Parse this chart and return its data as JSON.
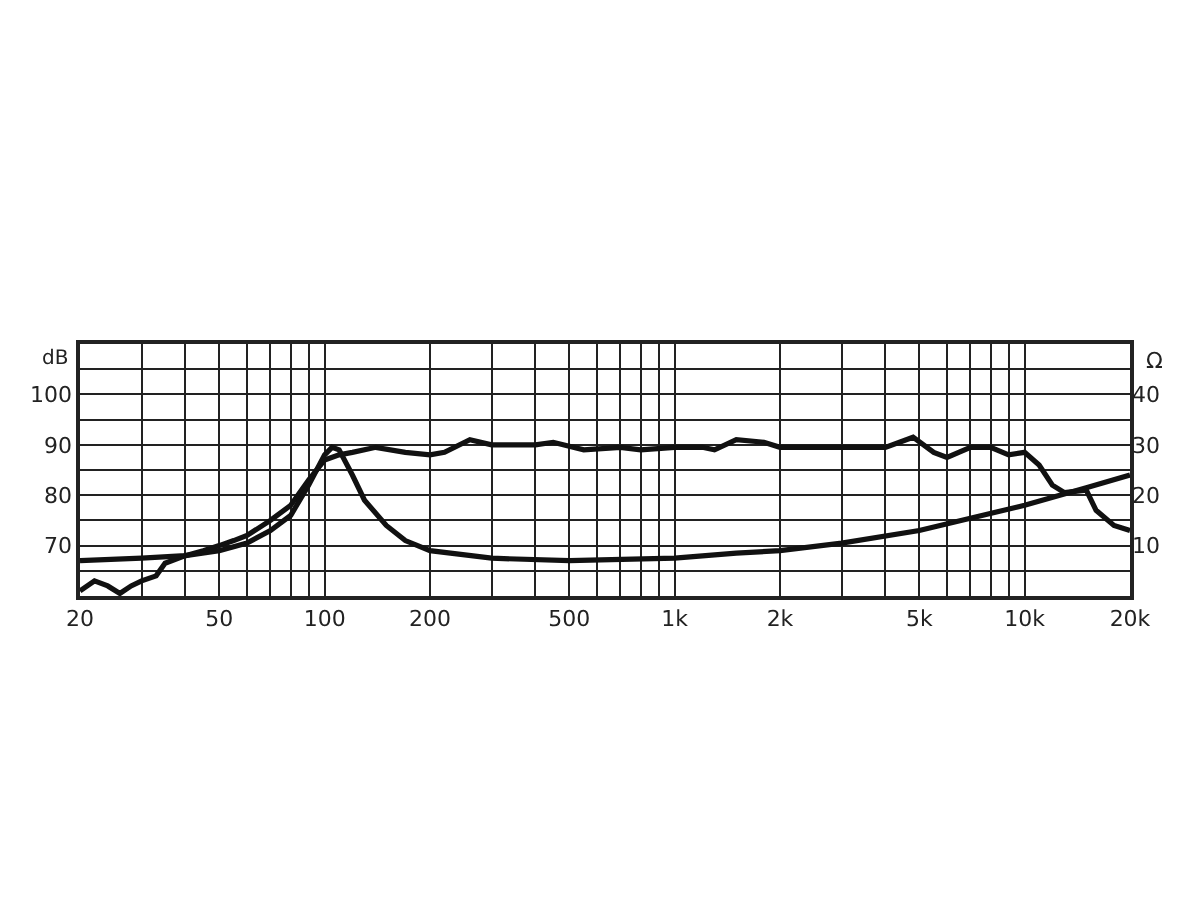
{
  "chart_data": {
    "type": "line",
    "ylabel": "dB",
    "y2label": "Ω",
    "series": [
      {
        "color": "#111111",
        "x": [
          20,
          22,
          24,
          26,
          28,
          30,
          33,
          35,
          40,
          45,
          50,
          55,
          60,
          70,
          80,
          90,
          100,
          110,
          120,
          140,
          170,
          200,
          220,
          260,
          300,
          400,
          450,
          550,
          700,
          800,
          1000,
          1200,
          1300,
          1500,
          1800,
          2000,
          3000,
          4000,
          4800,
          5500,
          6000,
          7000,
          8000,
          9000,
          10000,
          11000,
          12000,
          13000,
          15000,
          16000,
          18000,
          20000
        ],
        "values": [
          61,
          63,
          62,
          60.5,
          62,
          63,
          64,
          66.5,
          68,
          69,
          70,
          71,
          72,
          75,
          78,
          83,
          87,
          88,
          88.5,
          89.5,
          88.5,
          88,
          88.5,
          91,
          90,
          90,
          90.5,
          89,
          89.5,
          89,
          89.5,
          89.5,
          89,
          91,
          90.5,
          89.5,
          89.5,
          89.5,
          91.5,
          88.5,
          87.5,
          89.5,
          89.5,
          88,
          88.5,
          86,
          82,
          80.5,
          81,
          77,
          74,
          73
        ]
      },
      {
        "color": "#111111",
        "axis": "y2",
        "x": [
          20,
          30,
          40,
          50,
          60,
          70,
          80,
          90,
          100,
          105,
          110,
          120,
          130,
          150,
          170,
          200,
          300,
          500,
          1000,
          1500,
          2000,
          3000,
          5000,
          10000,
          15000,
          20000
        ],
        "values": [
          7,
          7.5,
          8,
          9,
          10.5,
          13,
          16,
          22,
          28,
          29.5,
          29,
          24,
          19,
          14,
          11,
          9,
          7.5,
          7,
          7.5,
          8.5,
          9,
          10.5,
          13,
          18,
          21.5,
          24
        ]
      }
    ],
    "log": "x",
    "xlim": [
      20,
      20000
    ],
    "xticks": [
      20,
      {
        "value": 30,
        "label": null
      },
      {
        "value": 40,
        "label": null
      },
      50,
      {
        "value": 60,
        "label": null
      },
      {
        "value": 70,
        "label": null
      },
      {
        "value": 80,
        "label": null
      },
      {
        "value": 90,
        "label": null
      },
      100,
      200,
      {
        "value": 300,
        "label": null
      },
      {
        "value": 400,
        "label": null
      },
      500,
      {
        "value": 600,
        "label": null
      },
      {
        "value": 700,
        "label": null
      },
      {
        "value": 800,
        "label": null
      },
      {
        "value": 900,
        "label": null
      },
      {
        "value": 1000,
        "label": "1k"
      },
      {
        "value": 2000,
        "label": "2k"
      },
      {
        "value": 3000,
        "label": null
      },
      {
        "value": 4000,
        "label": null
      },
      {
        "value": 5000,
        "label": "5k"
      },
      {
        "value": 6000,
        "label": null
      },
      {
        "value": 7000,
        "label": null
      },
      {
        "value": 8000,
        "label": null
      },
      {
        "value": 9000,
        "label": null
      },
      {
        "value": 10000,
        "label": "10k"
      },
      {
        "value": 20000,
        "label": "20k"
      }
    ],
    "ylim": [
      60,
      110
    ],
    "yticks": [
      {
        "value": 65,
        "label": null
      },
      70,
      {
        "value": 75,
        "label": null
      },
      80,
      {
        "value": 85,
        "label": null
      },
      90,
      {
        "value": 95,
        "label": null
      },
      100,
      {
        "value": 105,
        "label": null
      }
    ],
    "y2lim": [
      0,
      50
    ],
    "y2ticks": [
      10,
      20,
      30,
      40
    ],
    "grid": true,
    "legend": false,
    "marker": "none",
    "line_style": "solid"
  }
}
